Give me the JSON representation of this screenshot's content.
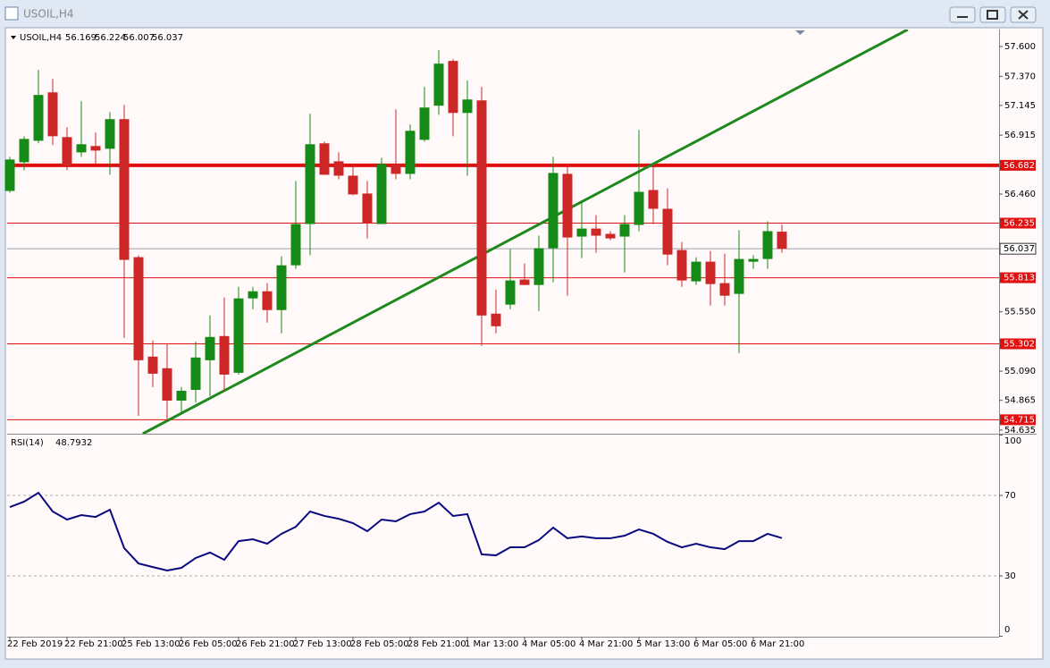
{
  "window": {
    "title": "USOIL,H4"
  },
  "chart_data": [
    {
      "type": "candlestick",
      "title": "USOIL,H4",
      "categories": [
        "22 Feb 2019",
        null,
        null,
        null,
        "22 Feb 21:00",
        null,
        null,
        null,
        "25 Feb 13:00",
        null,
        null,
        null,
        "26 Feb 05:00",
        null,
        null,
        null,
        "26 Feb 21:00",
        null,
        null,
        null,
        "27 Feb 13:00",
        null,
        null,
        null,
        "28 Feb 05:00",
        null,
        null,
        null,
        "28 Feb 21:00",
        null,
        null,
        null,
        "1 Mar 13:00",
        null,
        null,
        null,
        "4 Mar 05:00",
        null,
        null,
        null,
        "4 Mar 21:00",
        null,
        null,
        null,
        "5 Mar 13:00",
        null,
        null,
        null,
        "6 Mar 05:00",
        null,
        null,
        null,
        "6 Mar 21:00",
        null,
        null
      ],
      "open": [
        56.484,
        56.706,
        56.872,
        57.246,
        56.9,
        56.782,
        56.831,
        56.81,
        57.039,
        55.972,
        55.203,
        55.113,
        54.863,
        54.946,
        55.175,
        55.362,
        55.078,
        55.653,
        55.708,
        55.563,
        55.909,
        56.228,
        56.852,
        56.713,
        56.602,
        56.464,
        56.228,
        56.692,
        56.616,
        56.879,
        57.143,
        57.489,
        57.087,
        57.184,
        55.535,
        55.605,
        55.799,
        55.757,
        56.041,
        56.616,
        56.131,
        56.193,
        56.152,
        56.131,
        56.221,
        56.491,
        56.346,
        56.027,
        55.785,
        55.937,
        55.771,
        55.688,
        55.937,
        55.958,
        56.169
      ],
      "high": [
        56.748,
        56.907,
        57.42,
        57.35,
        56.976,
        57.177,
        56.935,
        57.094,
        57.149,
        55.986,
        55.327,
        55.3,
        54.967,
        55.32,
        55.521,
        55.66,
        55.743,
        55.743,
        55.771,
        55.979,
        56.561,
        57.08,
        56.865,
        56.782,
        56.678,
        56.561,
        56.741,
        57.115,
        56.997,
        57.288,
        57.572,
        57.503,
        57.337,
        57.288,
        55.722,
        56.034,
        55.923,
        56.138,
        56.748,
        56.692,
        56.401,
        56.297,
        56.173,
        56.297,
        56.955,
        56.692,
        56.505,
        56.089,
        55.972,
        56.02,
        55.999,
        56.18,
        55.986,
        56.249,
        56.224
      ],
      "low": [
        56.471,
        56.644,
        56.852,
        56.838,
        56.644,
        56.748,
        56.692,
        56.609,
        55.348,
        54.745,
        54.967,
        54.704,
        54.759,
        54.849,
        54.898,
        54.933,
        55.064,
        55.57,
        55.466,
        55.383,
        55.882,
        55.986,
        56.609,
        56.574,
        56.45,
        56.117,
        56.228,
        56.574,
        56.574,
        56.865,
        57.073,
        56.907,
        56.602,
        55.286,
        55.383,
        55.57,
        55.757,
        55.556,
        55.778,
        55.674,
        55.965,
        56.006,
        56.103,
        55.854,
        56.173,
        56.228,
        55.909,
        55.743,
        55.757,
        55.598,
        55.598,
        55.23,
        55.882,
        55.882,
        56.007
      ],
      "close": [
        56.727,
        56.886,
        57.226,
        56.907,
        56.678,
        56.845,
        56.796,
        57.039,
        55.951,
        55.175,
        55.071,
        54.863,
        54.939,
        55.196,
        55.355,
        55.064,
        55.653,
        55.708,
        55.563,
        55.909,
        56.228,
        56.845,
        56.609,
        56.602,
        56.457,
        56.235,
        56.692,
        56.616,
        56.949,
        57.129,
        57.468,
        57.087,
        57.191,
        55.521,
        55.438,
        55.792,
        55.757,
        56.041,
        56.623,
        56.124,
        56.193,
        56.138,
        56.117,
        56.228,
        56.477,
        56.346,
        55.992,
        55.792,
        55.937,
        55.764,
        55.674,
        55.958,
        55.958,
        56.173,
        56.037
      ],
      "up_color": "#168a16",
      "down_color": "#cc2626",
      "ylim": [
        54.607,
        57.732
      ],
      "yticks": [
        {
          "value": 57.6,
          "label": "57.600"
        },
        {
          "value": 57.37,
          "label": "57.370"
        },
        57.145,
        56.915,
        {
          "value": 56.46,
          "label": "56.460"
        },
        {
          "value": 55.55,
          "label": "55.550"
        },
        {
          "value": 55.09,
          "label": "55.090"
        },
        54.865,
        54.635
      ],
      "resistance": 56.682,
      "levels": [
        56.235,
        55.813,
        55.302,
        54.715
      ],
      "level_color": "#e01010",
      "trendline": {
        "color": "#1e8a1e",
        "points": [
          [
            9.3,
            54.607
          ],
          [
            62.8,
            57.732
          ]
        ]
      }
    },
    {
      "type": "line",
      "title": "RSI(14)",
      "values": [
        64.2,
        66.9,
        71.3,
        62.0,
        58.0,
        60.2,
        59.3,
        62.9,
        43.8,
        36.2,
        34.4,
        32.7,
        34.0,
        38.9,
        41.6,
        38.0,
        47.3,
        48.2,
        46.0,
        50.9,
        54.4,
        62.0,
        59.8,
        58.4,
        56.2,
        52.2,
        58.0,
        57.1,
        60.7,
        62.0,
        66.4,
        59.8,
        60.7,
        40.7,
        40.2,
        44.2,
        44.2,
        47.8,
        54.0,
        48.7,
        49.6,
        48.7,
        48.7,
        50.0,
        53.1,
        50.9,
        46.9,
        44.2,
        46.0,
        44.2,
        43.3,
        47.3,
        47.3,
        50.9,
        48.7932
      ],
      "color": "#0a0a80",
      "ylim": [
        0,
        100
      ],
      "yticks": [
        100,
        70,
        30,
        0
      ],
      "dashed": [
        70,
        30
      ]
    }
  ]
}
